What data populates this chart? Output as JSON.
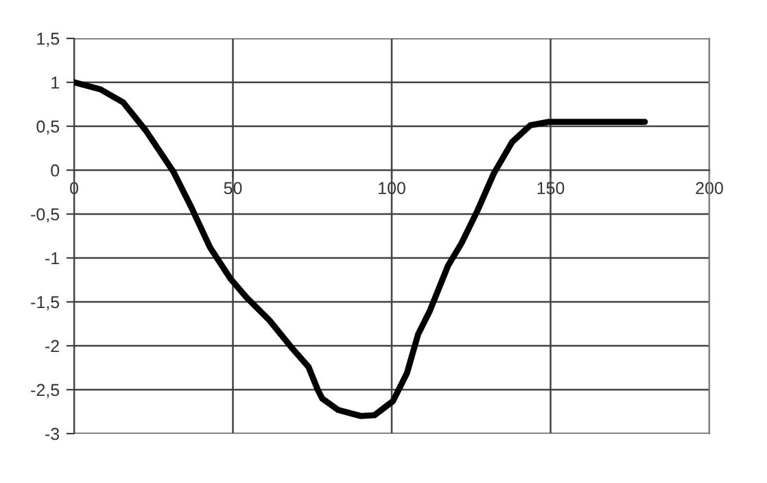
{
  "chart_data": {
    "type": "line",
    "x": [
      0,
      8.3,
      15.5,
      22.6,
      31.3,
      37,
      42.8,
      49.3,
      54.3,
      61.5,
      68.7,
      73.8,
      76.7,
      78.1,
      83.1,
      90.3,
      94.6,
      100.4,
      104.8,
      108.3,
      111.9,
      117.7,
      122,
      127,
      132.1,
      137.9,
      143.6,
      149.4,
      179.7
    ],
    "series": [
      {
        "color": "#000000",
        "values": [
          1.0,
          0.92,
          0.77,
          0.45,
          -0.02,
          -0.43,
          -0.88,
          -1.24,
          -1.45,
          -1.71,
          -2.03,
          -2.24,
          -2.5,
          -2.6,
          -2.73,
          -2.8,
          -2.79,
          -2.63,
          -2.31,
          -1.87,
          -1.61,
          -1.09,
          -0.83,
          -0.46,
          -0.04,
          0.32,
          0.51,
          0.55,
          0.55
        ]
      }
    ],
    "xlim": [
      0,
      200
    ],
    "ylim": [
      -3,
      1.5
    ],
    "xticks": [
      0,
      50,
      100,
      150,
      200
    ],
    "yticks": [
      {
        "value": 1.5,
        "label": "1,5"
      },
      1,
      {
        "value": 0.5,
        "label": "0,5"
      },
      0,
      {
        "value": -0.5,
        "label": "-0,5"
      },
      -1,
      {
        "value": -1.5,
        "label": "-1,5"
      },
      -2,
      {
        "value": -2.5,
        "label": "-2,5"
      },
      -3
    ],
    "grid": true,
    "marker": "none",
    "line_style": "solid",
    "legend": false
  }
}
